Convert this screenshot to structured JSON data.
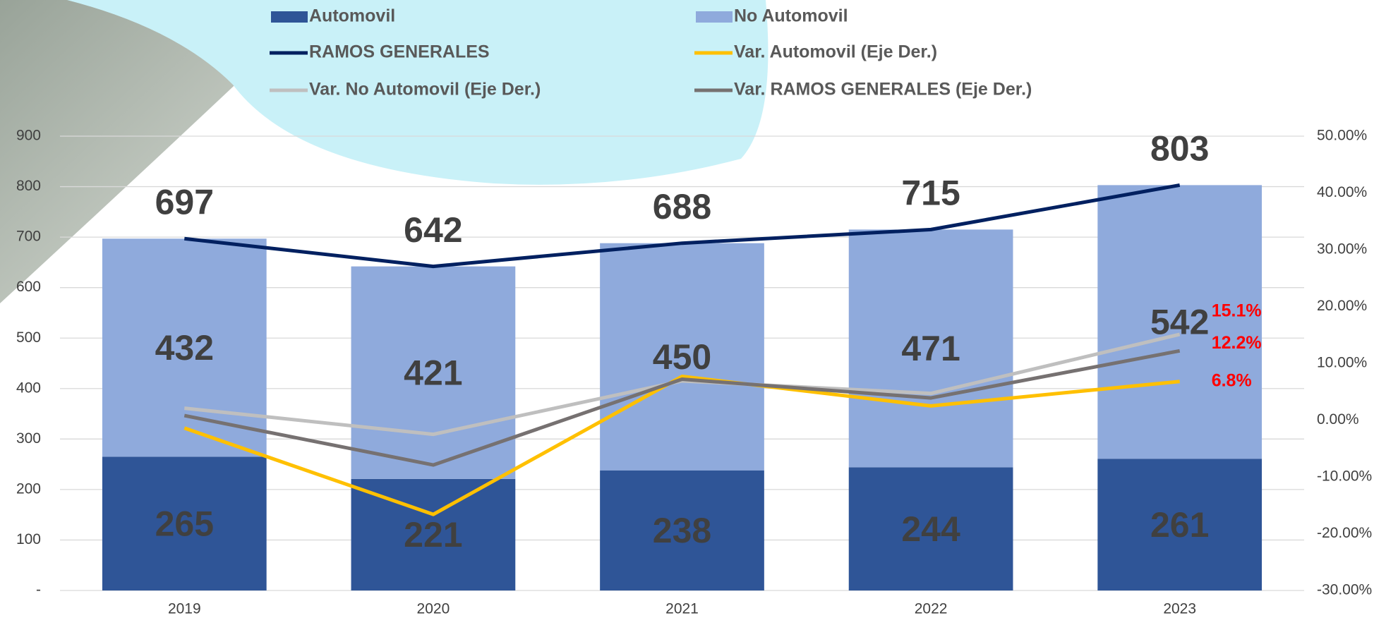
{
  "chart_data": {
    "type": "bar",
    "categories": [
      "2019",
      "2020",
      "2021",
      "2022",
      "2023"
    ],
    "series": [
      {
        "name": "Automovil",
        "type": "bar",
        "color": "#2f5597",
        "values": [
          265,
          221,
          238,
          244,
          261
        ]
      },
      {
        "name": "No Automovil",
        "type": "bar",
        "color": "#8faadc",
        "values": [
          432,
          421,
          450,
          471,
          542
        ]
      },
      {
        "name": "RAMOS GENERALES",
        "type": "line",
        "color": "#002060",
        "values": [
          697,
          642,
          688,
          715,
          803
        ]
      },
      {
        "name": "Var. Automovil (Eje Der.)",
        "type": "line",
        "axis": "y2",
        "color": "#ffc000",
        "values": [
          -1.4,
          -16.6,
          7.7,
          2.5,
          6.8
        ],
        "value_labels": [
          null,
          null,
          null,
          null,
          "6.8%"
        ]
      },
      {
        "name": "Var. No Automovil (Eje Der.)",
        "type": "line",
        "axis": "y2",
        "color": "#bfbfbf",
        "values": [
          2.1,
          -2.5,
          6.9,
          4.7,
          15.1
        ],
        "value_labels": [
          null,
          null,
          null,
          null,
          "15.1%"
        ]
      },
      {
        "name": "Var. RAMOS GENERALES (Eje Der.)",
        "type": "line",
        "axis": "y2",
        "color": "#767171",
        "values": [
          0.8,
          -7.9,
          7.2,
          3.9,
          12.2
        ],
        "value_labels": [
          null,
          null,
          null,
          null,
          "12.2%"
        ]
      }
    ],
    "stacked": true,
    "ylim": [
      0,
      900
    ],
    "yticks": [
      {
        "value": 0,
        "label": "-"
      },
      100,
      200,
      300,
      400,
      500,
      600,
      700,
      800,
      900
    ],
    "y2lim": [
      -30,
      50
    ],
    "y2ticks": [
      {
        "value": -30,
        "label": "-30.00%"
      },
      {
        "value": -20,
        "label": "-20.00%"
      },
      {
        "value": -10,
        "label": "-10.00%"
      },
      {
        "value": 0,
        "label": "0.00%"
      },
      {
        "value": 10,
        "label": "10.00%"
      },
      {
        "value": 20,
        "label": "20.00%"
      },
      {
        "value": 30,
        "label": "30.00%"
      },
      {
        "value": 40,
        "label": "40.00%"
      },
      {
        "value": 50,
        "label": "50.00%"
      }
    ],
    "grid": true,
    "legend": "top"
  }
}
